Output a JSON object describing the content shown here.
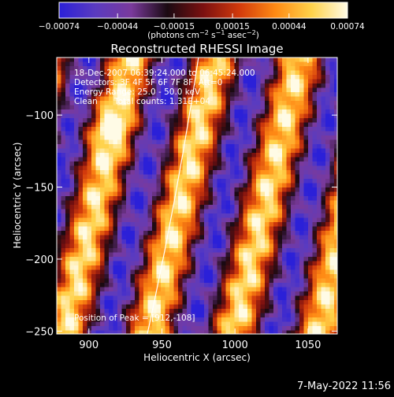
{
  "colors": {
    "background": "#000000",
    "text": "#ffffff",
    "limb": "#ffffff",
    "colormap": [
      "#2b20d8",
      "#5a3bc0",
      "#7a3a9c",
      "#1a0a12",
      "#7b1010",
      "#d23a0c",
      "#ff8a14",
      "#ffd24a",
      "#fffbe6"
    ]
  },
  "chart_data": {
    "type": "heatmap",
    "title": "Reconstructed RHESSI Image",
    "xlabel": "Heliocentric X (arcsec)",
    "ylabel": "Heliocentric Y (arcsec)",
    "xlim": [
      878,
      1070
    ],
    "ylim": [
      -252,
      -60
    ],
    "xticks": [
      900,
      950,
      1000,
      1050
    ],
    "yticks": [
      -100,
      -150,
      -200,
      -250
    ],
    "xtick_labels": [
      "900",
      "950",
      "1000",
      "1050"
    ],
    "ytick_labels": [
      "−100",
      "−150",
      "−200",
      "−250"
    ],
    "colorbar": {
      "range": [
        -0.00074,
        0.00074
      ],
      "ticks": [
        -0.00074,
        -0.00044,
        -0.00015,
        0.00015,
        0.00044,
        0.00074
      ],
      "tick_labels": [
        "−0.00074",
        "−0.00044",
        "−0.00015",
        "0.00015",
        "0.00044",
        "0.00074"
      ],
      "unit_text": "(photons cm",
      "unit_exp1": "−2",
      "unit_mid": " s",
      "unit_exp2": "−1",
      "unit_end": " asec",
      "unit_exp3": "−2",
      "unit_close": ")"
    },
    "annotations": {
      "time_range": "18-Dec-2007 06:39:24.000 to 06:45:24.000",
      "detectors": "Detectors: 3F 4F 5F 6F 7F 8F, Att=0",
      "energy_range": "Energy Range: 25.0 - 50.0 keV",
      "clean_label": "Clean",
      "total_counts": "Total counts: 1.31E+04",
      "peak": "Position of Peak = [912,-108]"
    },
    "peak_position": [
      912,
      -108
    ],
    "stripe_pattern": {
      "description_values": "diagonal alternating positive/negative stripes",
      "stripe_period_x": 58,
      "stripe_slope": 4.2,
      "bright_stripes_x_at_bottom": [
        883,
        940,
        998,
        1056
      ],
      "amplitude": 0.00074
    },
    "solar_limb": {
      "x_at_bottom": 940,
      "x_at_top": 975
    }
  },
  "footer": {
    "date": "7-May-2022 11:56"
  }
}
